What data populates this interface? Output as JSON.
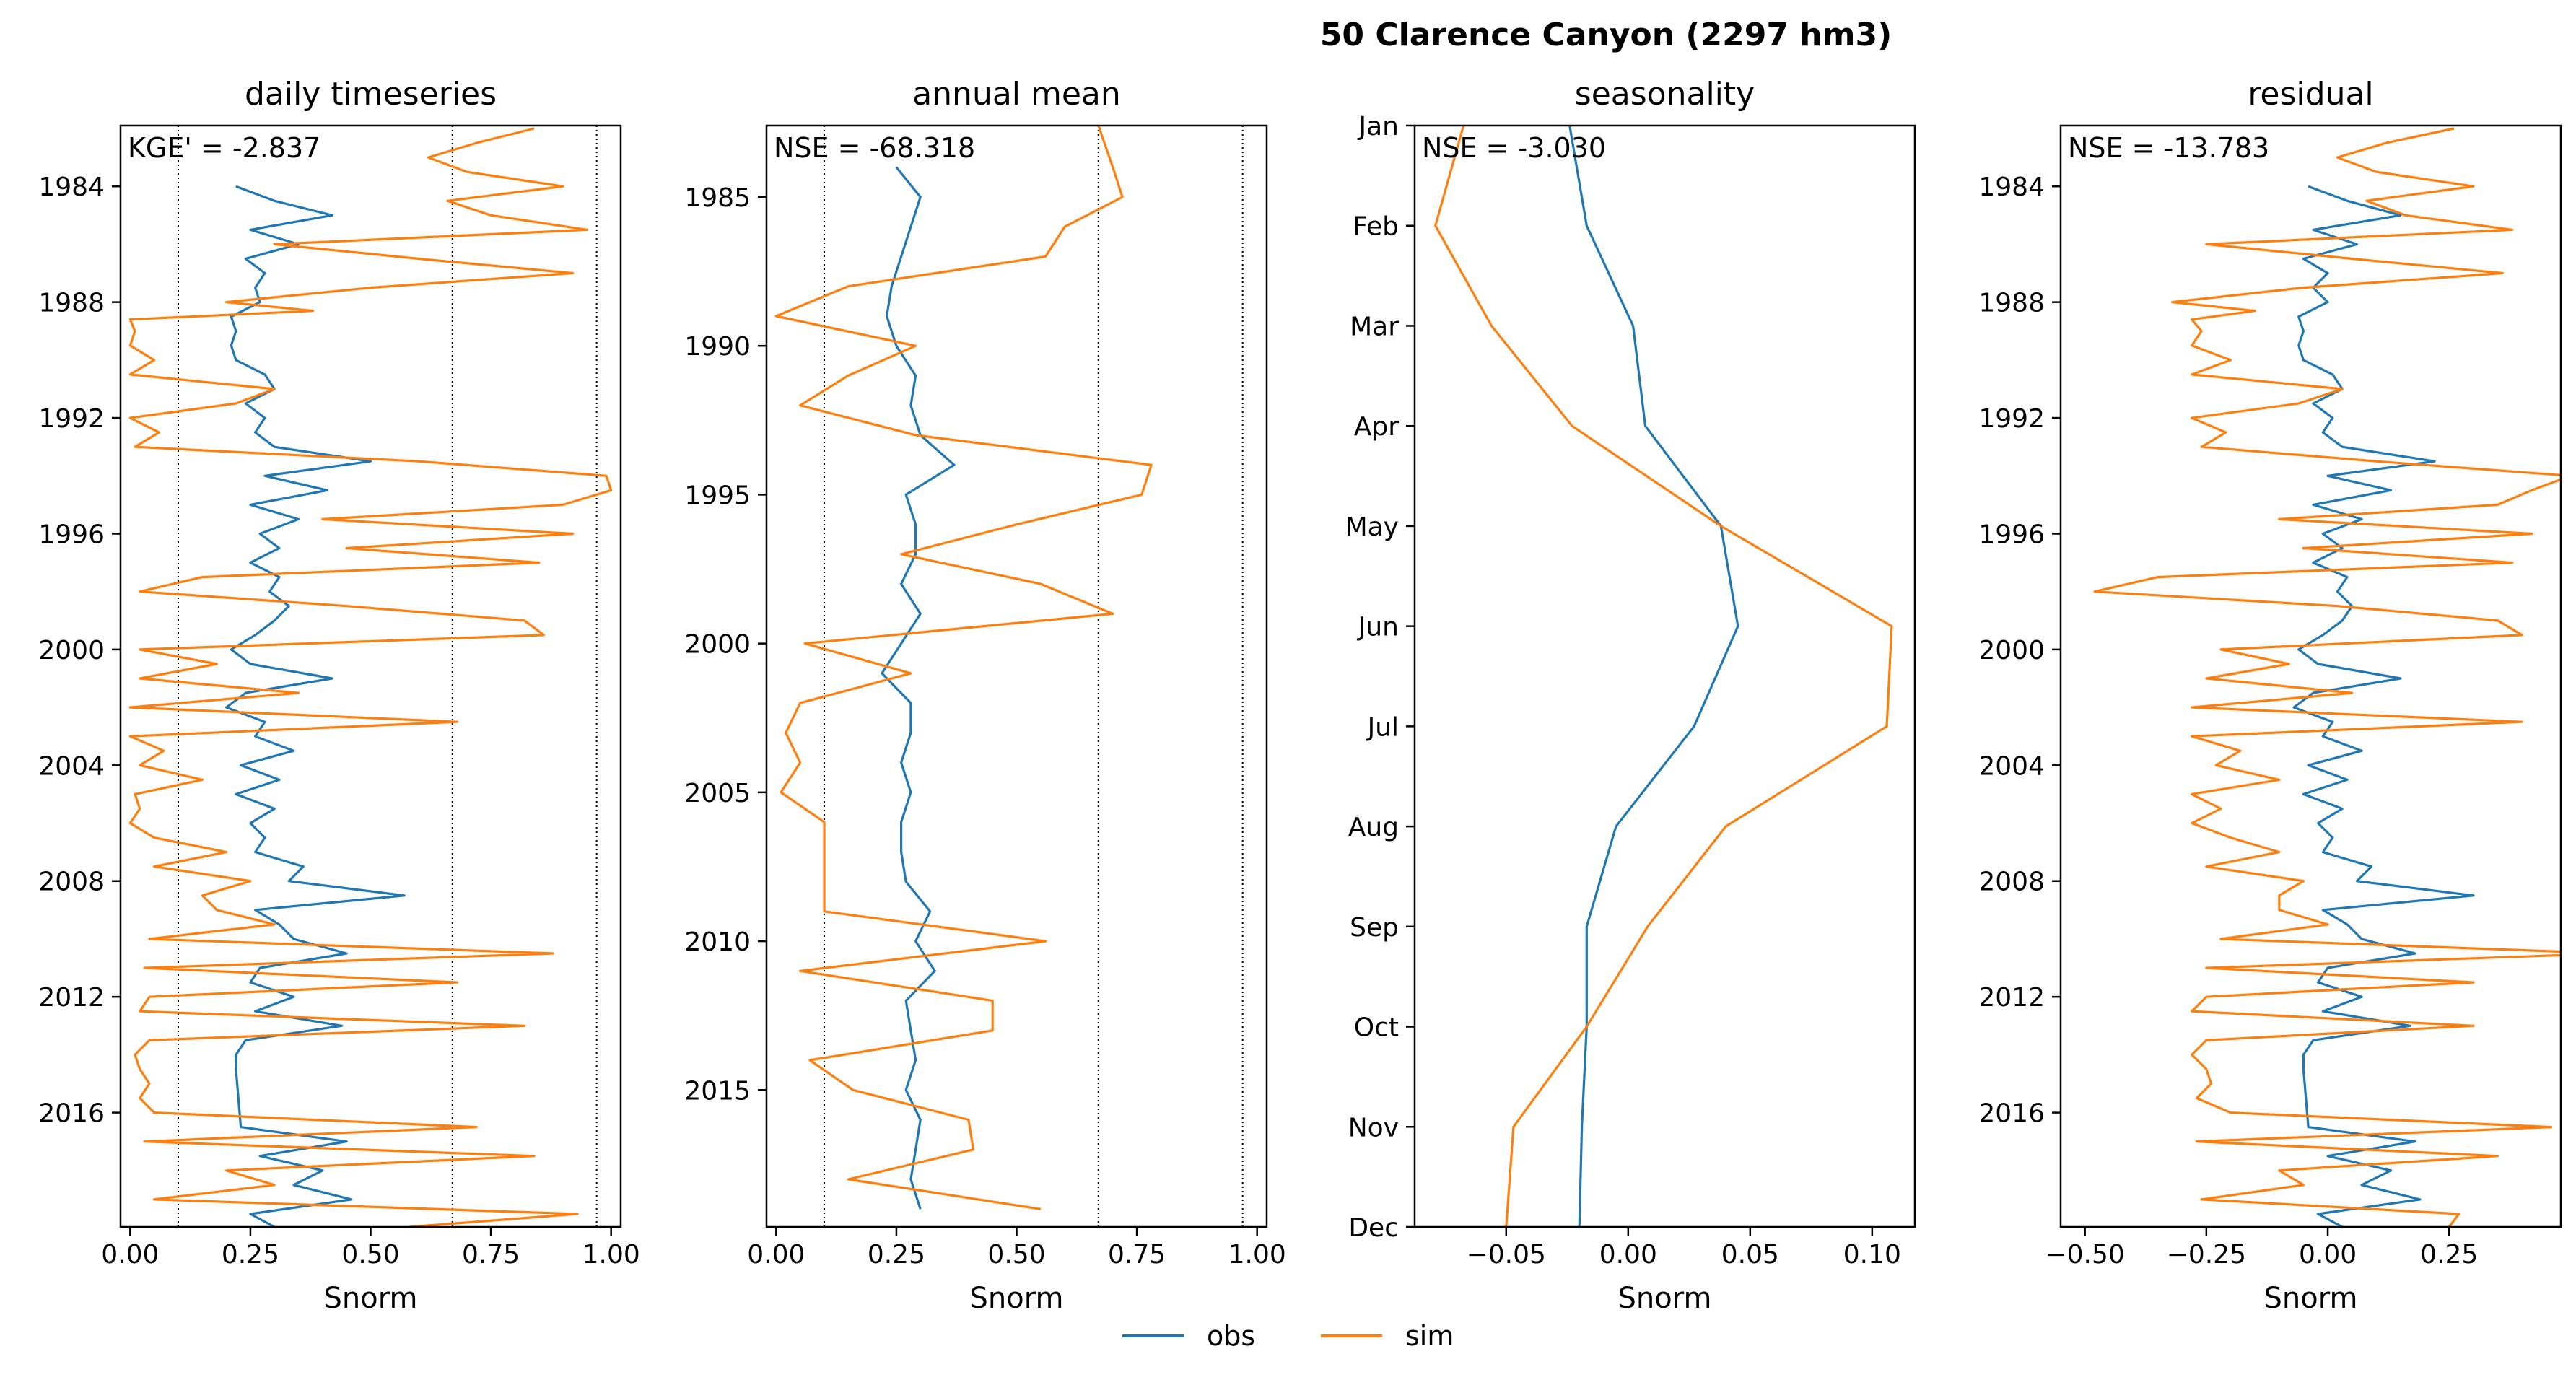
{
  "figure": {
    "suptitle": "50  Clarence Canyon (2297 hm3)",
    "legend": {
      "placement": "bottom-center",
      "items": [
        {
          "label": "obs",
          "color": "#1f77b4"
        },
        {
          "label": "sim",
          "color": "#ff7f0e"
        }
      ]
    }
  },
  "chart_data": [
    {
      "type": "line",
      "title": "daily timeseries",
      "annotation": "KGE' = -2.837",
      "xlabel": "Snorm",
      "xlim": [
        -0.02,
        1.02
      ],
      "xticks": [
        "0.00",
        "0.25",
        "0.50",
        "0.75",
        "1.00"
      ],
      "ylim": [
        1981.9,
        2019.95
      ],
      "yticks": [
        "1984",
        "1988",
        "1992",
        "1996",
        "2000",
        "2004",
        "2008",
        "2012",
        "2016"
      ],
      "vlines": [
        0.1,
        0.67,
        0.97
      ],
      "series": [
        {
          "name": "obs",
          "color": "#1f77b4",
          "y": [
            1984.0,
            1984.5,
            1985.0,
            1985.5,
            1986.0,
            1986.5,
            1987.0,
            1987.5,
            1988.0,
            1988.5,
            1989.0,
            1989.5,
            1990.0,
            1990.5,
            1991.0,
            1991.5,
            1992.0,
            1992.5,
            1993.0,
            1993.5,
            1994.0,
            1994.5,
            1995.0,
            1995.5,
            1996.0,
            1996.5,
            1997.0,
            1997.5,
            1998.0,
            1998.5,
            1999.0,
            1999.5,
            2000.0,
            2000.5,
            2001.0,
            2001.5,
            2002.0,
            2002.5,
            2003.0,
            2003.5,
            2004.0,
            2004.5,
            2005.0,
            2005.5,
            2006.0,
            2006.5,
            2007.0,
            2007.5,
            2008.0,
            2008.5,
            2009.0,
            2009.5,
            2010.0,
            2010.5,
            2011.0,
            2011.5,
            2012.0,
            2012.5,
            2013.0,
            2013.5,
            2014.0,
            2014.5,
            2016.5,
            2017.0,
            2017.5,
            2018.0,
            2018.5,
            2019.0,
            2019.5,
            2019.95
          ],
          "x": [
            0.22,
            0.3,
            0.42,
            0.25,
            0.35,
            0.24,
            0.28,
            0.26,
            0.27,
            0.21,
            0.22,
            0.21,
            0.22,
            0.28,
            0.3,
            0.24,
            0.28,
            0.26,
            0.3,
            0.5,
            0.28,
            0.41,
            0.25,
            0.35,
            0.27,
            0.31,
            0.25,
            0.31,
            0.29,
            0.33,
            0.3,
            0.26,
            0.21,
            0.25,
            0.42,
            0.24,
            0.2,
            0.28,
            0.26,
            0.34,
            0.23,
            0.31,
            0.22,
            0.3,
            0.25,
            0.28,
            0.26,
            0.36,
            0.33,
            0.57,
            0.26,
            0.31,
            0.34,
            0.45,
            0.27,
            0.25,
            0.34,
            0.26,
            0.44,
            0.24,
            0.22,
            0.22,
            0.23,
            0.45,
            0.27,
            0.4,
            0.34,
            0.46,
            0.25,
            0.3
          ]
        },
        {
          "name": "sim",
          "color": "#ff7f0e",
          "y": [
            1982.0,
            1982.5,
            1983.0,
            1983.5,
            1984.0,
            1984.5,
            1985.0,
            1985.5,
            1986.0,
            1986.5,
            1987.0,
            1987.5,
            1988.0,
            1988.3,
            1988.6,
            1989.0,
            1989.5,
            1990.0,
            1990.5,
            1991.0,
            1991.5,
            1992.0,
            1992.5,
            1993.0,
            1993.5,
            1994.0,
            1994.5,
            1995.0,
            1995.5,
            1996.0,
            1996.5,
            1997.0,
            1997.5,
            1998.0,
            1998.5,
            1999.0,
            1999.5,
            2000.0,
            2000.5,
            2001.0,
            2001.5,
            2002.0,
            2002.5,
            2003.0,
            2003.5,
            2004.0,
            2004.5,
            2005.0,
            2005.5,
            2006.0,
            2006.5,
            2007.0,
            2007.5,
            2008.0,
            2008.5,
            2009.0,
            2009.5,
            2010.0,
            2010.5,
            2011.0,
            2011.5,
            2012.0,
            2012.5,
            2013.0,
            2013.5,
            2014.0,
            2014.5,
            2015.0,
            2015.5,
            2016.0,
            2016.5,
            2017.0,
            2017.5,
            2018.0,
            2018.5,
            2019.0,
            2019.5,
            2019.95
          ],
          "x": [
            0.84,
            0.72,
            0.62,
            0.7,
            0.9,
            0.66,
            0.75,
            0.95,
            0.3,
            0.6,
            0.92,
            0.5,
            0.2,
            0.38,
            0.0,
            0.01,
            0.0,
            0.05,
            0.0,
            0.3,
            0.22,
            0.0,
            0.06,
            0.01,
            0.6,
            0.99,
            1.0,
            0.9,
            0.4,
            0.92,
            0.45,
            0.85,
            0.15,
            0.02,
            0.45,
            0.82,
            0.86,
            0.02,
            0.18,
            0.02,
            0.35,
            0.0,
            0.68,
            0.0,
            0.07,
            0.02,
            0.15,
            0.01,
            0.02,
            0.0,
            0.05,
            0.2,
            0.05,
            0.25,
            0.15,
            0.18,
            0.3,
            0.04,
            0.88,
            0.03,
            0.68,
            0.04,
            0.02,
            0.82,
            0.04,
            0.01,
            0.02,
            0.04,
            0.02,
            0.05,
            0.72,
            0.03,
            0.84,
            0.2,
            0.3,
            0.05,
            0.93,
            0.58
          ]
        }
      ]
    },
    {
      "type": "line",
      "title": "annual mean",
      "annotation": "NSE = -68.318",
      "xlabel": "Snorm",
      "xlim": [
        -0.02,
        1.02
      ],
      "xticks": [
        "0.00",
        "0.25",
        "0.50",
        "0.75",
        "1.00"
      ],
      "ylim": [
        1982.6,
        2019.6
      ],
      "yticks": [
        "1985",
        "1990",
        "1995",
        "2000",
        "2005",
        "2010",
        "2015"
      ],
      "vlines": [
        0.1,
        0.67,
        0.97
      ],
      "series": [
        {
          "name": "obs",
          "color": "#1f77b4",
          "y": [
            1984,
            1985,
            1986,
            1987,
            1988,
            1989,
            1990,
            1991,
            1992,
            1993,
            1994,
            1995,
            1996,
            1997,
            1998,
            1999,
            2000,
            2001,
            2002,
            2003,
            2004,
            2005,
            2006,
            2007,
            2008,
            2009,
            2010,
            2011,
            2012,
            2013,
            2014,
            2015,
            2016,
            2017,
            2018,
            2019
          ],
          "x": [
            0.25,
            0.3,
            0.28,
            0.26,
            0.24,
            0.23,
            0.25,
            0.29,
            0.28,
            0.3,
            0.37,
            0.27,
            0.29,
            0.29,
            0.26,
            0.3,
            0.26,
            0.22,
            0.28,
            0.28,
            0.26,
            0.28,
            0.26,
            0.26,
            0.27,
            0.32,
            0.29,
            0.33,
            0.27,
            0.28,
            0.29,
            0.27,
            0.3,
            0.29,
            0.28,
            0.3
          ]
        },
        {
          "name": "sim",
          "color": "#ff7f0e",
          "y": [
            1982.6,
            1984,
            1985,
            1986,
            1987,
            1988,
            1989,
            1990,
            1991,
            1992,
            1993,
            1994,
            1995,
            1996,
            1997,
            1998,
            1999,
            2000,
            2001,
            2002,
            2003,
            2004,
            2005,
            2006,
            2007,
            2008,
            2009,
            2010,
            2011,
            2012,
            2013,
            2014,
            2015,
            2016,
            2017,
            2018,
            2019
          ],
          "x": [
            0.67,
            0.7,
            0.72,
            0.6,
            0.56,
            0.15,
            0.0,
            0.29,
            0.15,
            0.05,
            0.29,
            0.78,
            0.76,
            0.5,
            0.26,
            0.55,
            0.7,
            0.06,
            0.28,
            0.05,
            0.02,
            0.05,
            0.01,
            0.1,
            0.1,
            0.1,
            0.1,
            0.56,
            0.05,
            0.45,
            0.45,
            0.07,
            0.16,
            0.4,
            0.41,
            0.15,
            0.55
          ]
        }
      ]
    },
    {
      "type": "line",
      "title": "seasonality",
      "annotation": "NSE = -3.030",
      "xlabel": "Snorm",
      "xlim": [
        -0.0875,
        0.1175
      ],
      "xticks": [
        "−0.05",
        "0.00",
        "0.05",
        "0.10"
      ],
      "ylim": [
        0,
        11
      ],
      "yticks": [
        "Jan",
        "Feb",
        "Mar",
        "Apr",
        "May",
        "Jun",
        "Jul",
        "Aug",
        "Sep",
        "Oct",
        "Nov",
        "Dec"
      ],
      "series": [
        {
          "name": "obs",
          "color": "#1f77b4",
          "y": [
            0,
            1,
            2,
            3,
            4,
            5,
            6,
            7,
            8,
            9,
            10,
            11
          ],
          "x": [
            -0.024,
            -0.017,
            0.002,
            0.007,
            0.038,
            0.045,
            0.027,
            -0.005,
            -0.017,
            -0.017,
            -0.019,
            -0.02
          ]
        },
        {
          "name": "sim",
          "color": "#ff7f0e",
          "y": [
            -0.3,
            1,
            2,
            3,
            4,
            5,
            6,
            7,
            8,
            9,
            10,
            11
          ],
          "x": [
            -0.064,
            -0.079,
            -0.056,
            -0.023,
            0.038,
            0.108,
            0.106,
            0.04,
            0.008,
            -0.017,
            -0.047,
            -0.05
          ]
        }
      ]
    },
    {
      "type": "line",
      "title": "residual",
      "annotation": "NSE = -13.783",
      "xlabel": "Snorm",
      "xlim": [
        -0.55,
        0.48
      ],
      "xticks": [
        "−0.50",
        "−0.25",
        "0.00",
        "0.25"
      ],
      "ylim": [
        1981.9,
        2019.95
      ],
      "yticks": [
        "1984",
        "1988",
        "1992",
        "1996",
        "2000",
        "2004",
        "2008",
        "2012",
        "2016"
      ],
      "series": [
        {
          "name": "obs",
          "color": "#1f77b4",
          "y": [
            1984.0,
            1984.5,
            1985.0,
            1985.5,
            1986.0,
            1986.5,
            1987.0,
            1987.5,
            1988.0,
            1988.5,
            1989.0,
            1989.5,
            1990.0,
            1990.5,
            1991.0,
            1991.5,
            1992.0,
            1992.5,
            1993.0,
            1993.5,
            1994.0,
            1994.5,
            1995.0,
            1995.5,
            1996.0,
            1996.5,
            1997.0,
            1997.5,
            1998.0,
            1998.5,
            1999.0,
            1999.5,
            2000.0,
            2000.5,
            2001.0,
            2001.5,
            2002.0,
            2002.5,
            2003.0,
            2003.5,
            2004.0,
            2004.5,
            2005.0,
            2005.5,
            2006.0,
            2006.5,
            2007.0,
            2007.5,
            2008.0,
            2008.5,
            2009.0,
            2009.5,
            2010.0,
            2010.5,
            2011.0,
            2011.5,
            2012.0,
            2012.5,
            2013.0,
            2013.5,
            2014.0,
            2014.5,
            2016.5,
            2017.0,
            2017.5,
            2018.0,
            2018.5,
            2019.0,
            2019.5,
            2019.95
          ],
          "x": [
            -0.04,
            0.04,
            0.15,
            -0.03,
            0.06,
            -0.05,
            0.0,
            -0.03,
            0.0,
            -0.06,
            -0.05,
            -0.06,
            -0.05,
            0.01,
            0.03,
            -0.03,
            0.01,
            -0.01,
            0.03,
            0.22,
            0.0,
            0.13,
            -0.03,
            0.07,
            -0.01,
            0.03,
            -0.03,
            0.04,
            0.02,
            0.05,
            0.03,
            -0.01,
            -0.06,
            -0.02,
            0.15,
            -0.03,
            -0.07,
            0.01,
            -0.01,
            0.07,
            -0.04,
            0.04,
            -0.05,
            0.03,
            -0.02,
            0.01,
            -0.01,
            0.09,
            0.06,
            0.3,
            -0.01,
            0.04,
            0.07,
            0.18,
            0.0,
            -0.02,
            0.07,
            -0.01,
            0.17,
            -0.03,
            -0.05,
            -0.05,
            -0.04,
            0.18,
            0.0,
            0.13,
            0.07,
            0.19,
            -0.02,
            0.03
          ]
        },
        {
          "name": "sim",
          "color": "#ff7f0e",
          "y": [
            1982.0,
            1982.5,
            1983.0,
            1983.5,
            1984.0,
            1984.5,
            1985.0,
            1985.5,
            1986.0,
            1986.5,
            1987.0,
            1987.5,
            1988.0,
            1988.3,
            1988.6,
            1989.0,
            1989.5,
            1990.0,
            1990.5,
            1991.0,
            1991.5,
            1992.0,
            1992.5,
            1993.0,
            1993.5,
            1994.0,
            1994.5,
            1995.0,
            1995.5,
            1996.0,
            1996.5,
            1997.0,
            1997.5,
            1998.0,
            1998.5,
            1999.0,
            1999.5,
            2000.0,
            2000.5,
            2001.0,
            2001.5,
            2002.0,
            2002.5,
            2003.0,
            2003.5,
            2004.0,
            2004.5,
            2005.0,
            2005.5,
            2006.0,
            2006.5,
            2007.0,
            2007.5,
            2008.0,
            2008.5,
            2009.0,
            2009.5,
            2010.0,
            2010.5,
            2011.0,
            2011.5,
            2012.0,
            2012.5,
            2013.0,
            2013.5,
            2014.0,
            2014.5,
            2015.0,
            2015.5,
            2016.0,
            2016.5,
            2017.0,
            2017.5,
            2018.0,
            2018.5,
            2019.0,
            2019.5,
            2019.95
          ],
          "x": [
            0.26,
            0.12,
            0.02,
            0.1,
            0.3,
            0.08,
            0.16,
            0.38,
            -0.25,
            0.05,
            0.36,
            -0.05,
            -0.32,
            -0.15,
            -0.28,
            -0.26,
            -0.28,
            -0.2,
            -0.28,
            0.03,
            -0.06,
            -0.28,
            -0.21,
            -0.26,
            0.1,
            0.5,
            0.42,
            0.35,
            -0.1,
            0.42,
            -0.05,
            0.38,
            -0.35,
            -0.48,
            0.02,
            0.35,
            0.4,
            -0.22,
            -0.08,
            -0.25,
            0.05,
            -0.28,
            0.4,
            -0.28,
            -0.18,
            -0.23,
            -0.1,
            -0.28,
            -0.22,
            -0.28,
            -0.2,
            -0.1,
            -0.25,
            -0.05,
            -0.1,
            -0.1,
            0.0,
            -0.22,
            0.58,
            -0.25,
            0.3,
            -0.25,
            -0.28,
            0.3,
            -0.25,
            -0.28,
            -0.25,
            -0.24,
            -0.27,
            -0.2,
            0.46,
            -0.27,
            0.35,
            -0.1,
            -0.05,
            -0.26,
            0.27,
            0.25
          ]
        }
      ]
    }
  ]
}
